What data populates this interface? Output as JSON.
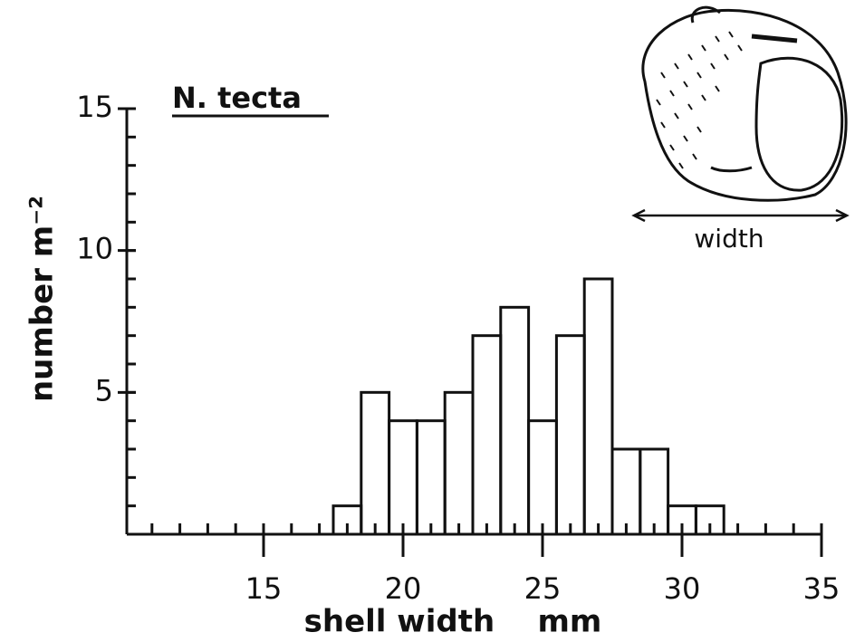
{
  "chart_data": {
    "type": "histogram",
    "title": "N. tecta",
    "x_label": "shell width    mm",
    "y_label": "number m⁻²",
    "inset_label": "width",
    "bins": [
      17.5,
      18.5,
      19.5,
      20.5,
      21.5,
      22.5,
      23.5,
      24.5,
      25.5,
      26.5,
      27.5,
      28.5,
      29.5,
      30.5,
      31.5
    ],
    "counts": [
      1,
      5,
      4,
      4,
      5,
      7,
      8,
      4,
      7,
      9,
      3,
      3,
      1,
      1
    ],
    "color": "#111111",
    "xlim": [
      10,
      35
    ],
    "xticks": [
      15,
      20,
      25,
      30,
      35
    ],
    "ylim": [
      0,
      15
    ],
    "yticks": [
      5,
      10,
      15
    ],
    "minor_tick_step": 1
  }
}
